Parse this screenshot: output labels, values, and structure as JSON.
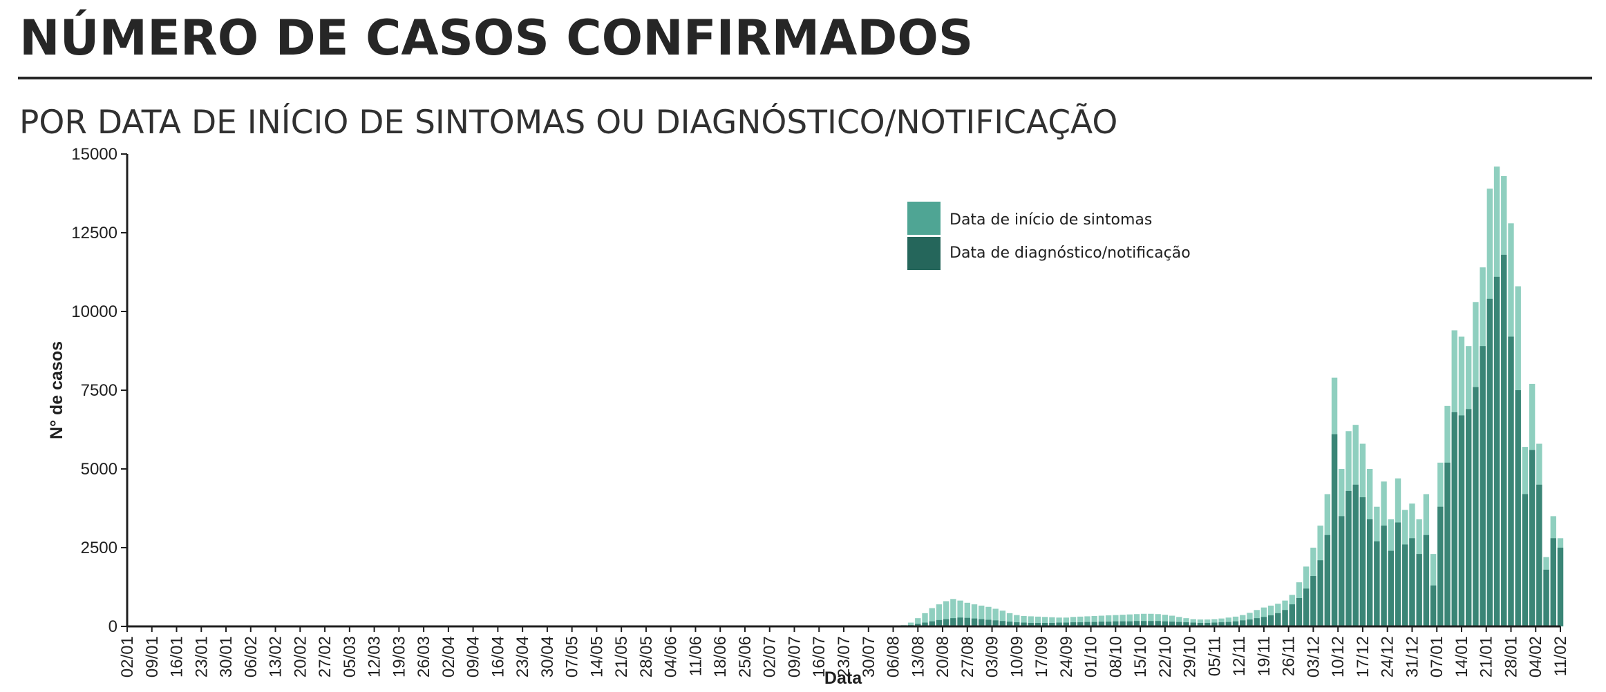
{
  "header": {
    "title": "NÚMERO DE CASOS CONFIRMADOS",
    "subtitle": "POR DATA DE INÍCIO DE SINTOMAS OU DIAGNÓSTICO/NOTIFICAÇÃO"
  },
  "colors": {
    "symptom_onset": "#8fcfbf",
    "diagnosis": "#3a8576",
    "legend_symptom": "#4fa594",
    "legend_diagnosis": "#25665b",
    "axis": "#1f1f1f"
  },
  "chart_data": {
    "type": "bar",
    "xlabel": "Data",
    "ylabel": "N° de casos",
    "ylim": [
      0,
      15000
    ],
    "yticks": [
      0,
      2500,
      5000,
      7500,
      10000,
      12500,
      15000
    ],
    "xticks": [
      "02/01",
      "09/01",
      "16/01",
      "23/01",
      "30/01",
      "06/02",
      "13/02",
      "20/02",
      "27/02",
      "05/03",
      "12/03",
      "19/03",
      "26/03",
      "02/04",
      "09/04",
      "16/04",
      "23/04",
      "30/04",
      "07/05",
      "14/05",
      "21/05",
      "28/05",
      "04/06",
      "11/06",
      "18/06",
      "25/06",
      "02/07",
      "09/07",
      "16/07",
      "23/07",
      "30/07",
      "06/08",
      "13/08",
      "20/08",
      "27/08",
      "03/09",
      "10/09",
      "17/09",
      "24/09",
      "01/10",
      "08/10",
      "15/10",
      "22/10",
      "29/10",
      "05/11",
      "12/11",
      "19/11",
      "26/11",
      "03/12",
      "10/12",
      "17/12",
      "24/12",
      "31/12",
      "07/01",
      "14/01",
      "21/01",
      "28/01",
      "04/02",
      "11/02"
    ],
    "legend": {
      "position": "top-center",
      "entries": [
        "Data de início de sintomas",
        "Data de diagnóstico/notificação"
      ]
    },
    "grid": false,
    "bar_interval_days": 2,
    "series": [
      {
        "name": "Data de início de sintomas",
        "color": "#8fcfbf",
        "values": [
          0,
          0,
          0,
          0,
          0,
          0,
          0,
          0,
          0,
          0,
          0,
          0,
          0,
          0,
          0,
          0,
          0,
          0,
          0,
          0,
          0,
          0,
          0,
          0,
          0,
          0,
          0,
          0,
          0,
          0,
          0,
          0,
          5,
          40,
          120,
          260,
          420,
          580,
          700,
          800,
          870,
          820,
          750,
          700,
          660,
          620,
          560,
          500,
          420,
          360,
          330,
          320,
          310,
          300,
          290,
          280,
          280,
          300,
          310,
          320,
          330,
          340,
          350,
          360,
          370,
          380,
          390,
          400,
          400,
          390,
          370,
          340,
          300,
          260,
          230,
          220,
          220,
          230,
          250,
          280,
          310,
          360,
          430,
          520,
          600,
          660,
          720,
          820,
          1000,
          1400,
          1900,
          2500,
          3200,
          4200,
          7900,
          5000,
          6200,
          6400,
          5800,
          5000,
          3800,
          4600,
          3400,
          4700,
          3700,
          3900,
          3400,
          4200,
          2300,
          5200,
          7000,
          9400,
          9200,
          8900,
          10300,
          11400,
          13900,
          14600,
          14300,
          12800,
          10800,
          5700,
          7700,
          5800,
          2200,
          3500,
          2800
        ]
      },
      {
        "name": "Data de diagnóstico/notificação",
        "color": "#3a8576",
        "values": [
          0,
          0,
          0,
          0,
          0,
          0,
          0,
          0,
          0,
          0,
          0,
          0,
          0,
          0,
          0,
          0,
          0,
          0,
          0,
          0,
          0,
          0,
          0,
          0,
          0,
          0,
          0,
          0,
          0,
          0,
          0,
          0,
          0,
          10,
          40,
          80,
          120,
          160,
          200,
          230,
          260,
          280,
          270,
          250,
          230,
          210,
          190,
          170,
          150,
          130,
          120,
          110,
          110,
          110,
          110,
          120,
          120,
          130,
          130,
          140,
          140,
          150,
          150,
          160,
          160,
          160,
          170,
          170,
          170,
          170,
          160,
          150,
          140,
          130,
          120,
          110,
          110,
          120,
          130,
          140,
          160,
          190,
          220,
          260,
          300,
          350,
          420,
          520,
          700,
          900,
          1200,
          1600,
          2100,
          2900,
          6100,
          3500,
          4300,
          4500,
          4100,
          3400,
          2700,
          3200,
          2400,
          3300,
          2600,
          2800,
          2300,
          2900,
          1300,
          3800,
          5200,
          6800,
          6700,
          6900,
          7600,
          8900,
          10400,
          11100,
          11800,
          9200,
          7500,
          4200,
          5600,
          4500,
          1800,
          2800,
          2500
        ]
      }
    ]
  }
}
